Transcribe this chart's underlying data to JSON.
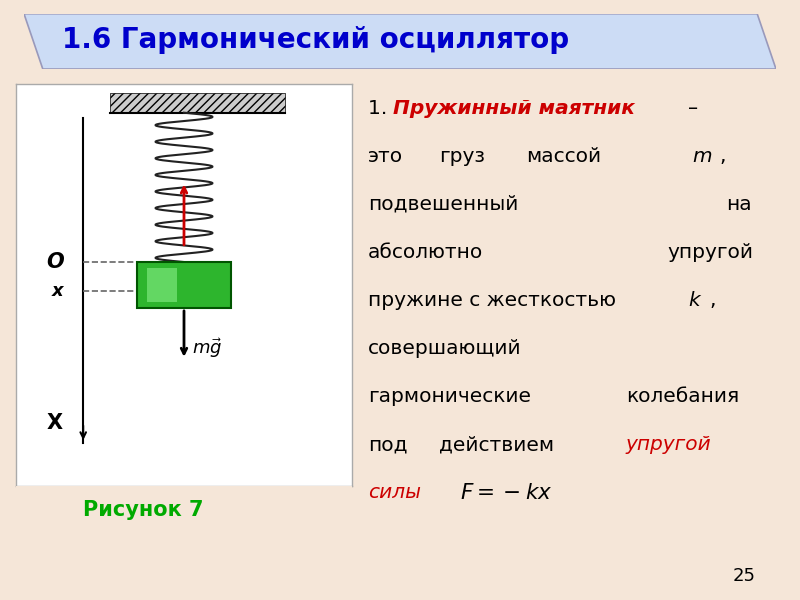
{
  "bg_color": "#f5e6d8",
  "title_box_color_top": "#d0dff5",
  "title_box_color_bot": "#b8cce8",
  "title_text": "1.6 Гармонический осциллятор",
  "title_color": "#0000cc",
  "title_fontsize": 20,
  "fig_panel_color": "#ffffff",
  "caption_text": "Рисунок 7",
  "caption_color": "#00aa00",
  "caption_fontsize": 15,
  "page_num": "25",
  "spring_color": "#222222",
  "mass_color_face": "#22aa22",
  "mass_color_edge": "#005500",
  "force_arrow_color": "#cc0000",
  "dashed_line_color": "#666666"
}
